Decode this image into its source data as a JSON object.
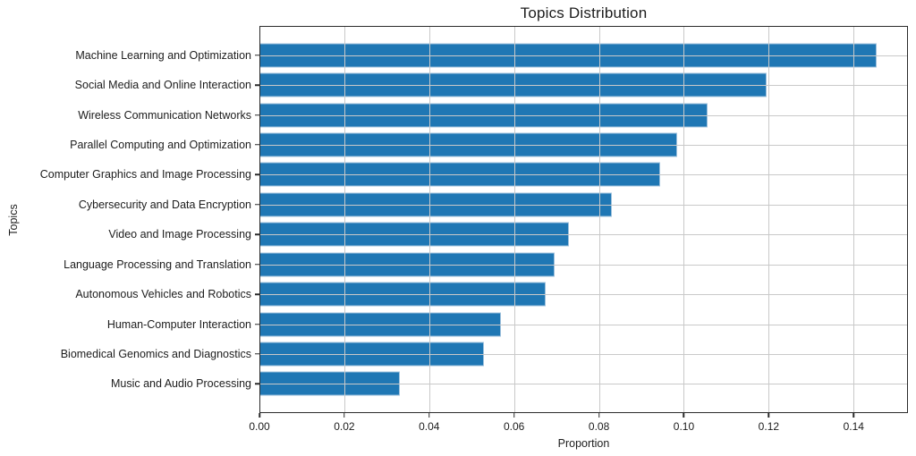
{
  "chart_data": {
    "type": "bar",
    "orientation": "horizontal",
    "title": "Topics Distribution",
    "xlabel": "Proportion",
    "ylabel": "Topics",
    "categories": [
      "Machine Learning and Optimization",
      "Social Media and Online Interaction",
      "Wireless Communication Networks",
      "Parallel Computing and Optimization",
      "Computer Graphics and Image Processing",
      "Cybersecurity and Data Encryption",
      "Video and Image Processing",
      "Language Processing and Translation",
      "Autonomous Vehicles and Robotics",
      "Human-Computer Interaction",
      "Biomedical Genomics and Diagnostics",
      "Music and Audio Processing"
    ],
    "values": [
      0.1455,
      0.1195,
      0.1055,
      0.0985,
      0.0945,
      0.083,
      0.073,
      0.0695,
      0.0675,
      0.057,
      0.053,
      0.033
    ],
    "x_ticks": [
      0.0,
      0.02,
      0.04,
      0.06,
      0.08,
      0.1,
      0.12,
      0.14
    ],
    "x_tick_labels": [
      "0.00",
      "0.02",
      "0.04",
      "0.06",
      "0.08",
      "0.10",
      "0.12",
      "0.14"
    ],
    "xlim": [
      0,
      0.1528
    ],
    "grid": true,
    "legend": null,
    "bar_color": "#1f77b4",
    "bar_edge_color": "#9cc0dc",
    "grid_color": "#c9c9c9",
    "frame_color": "#2b2b2b",
    "text_color": "#1c1c1c"
  }
}
